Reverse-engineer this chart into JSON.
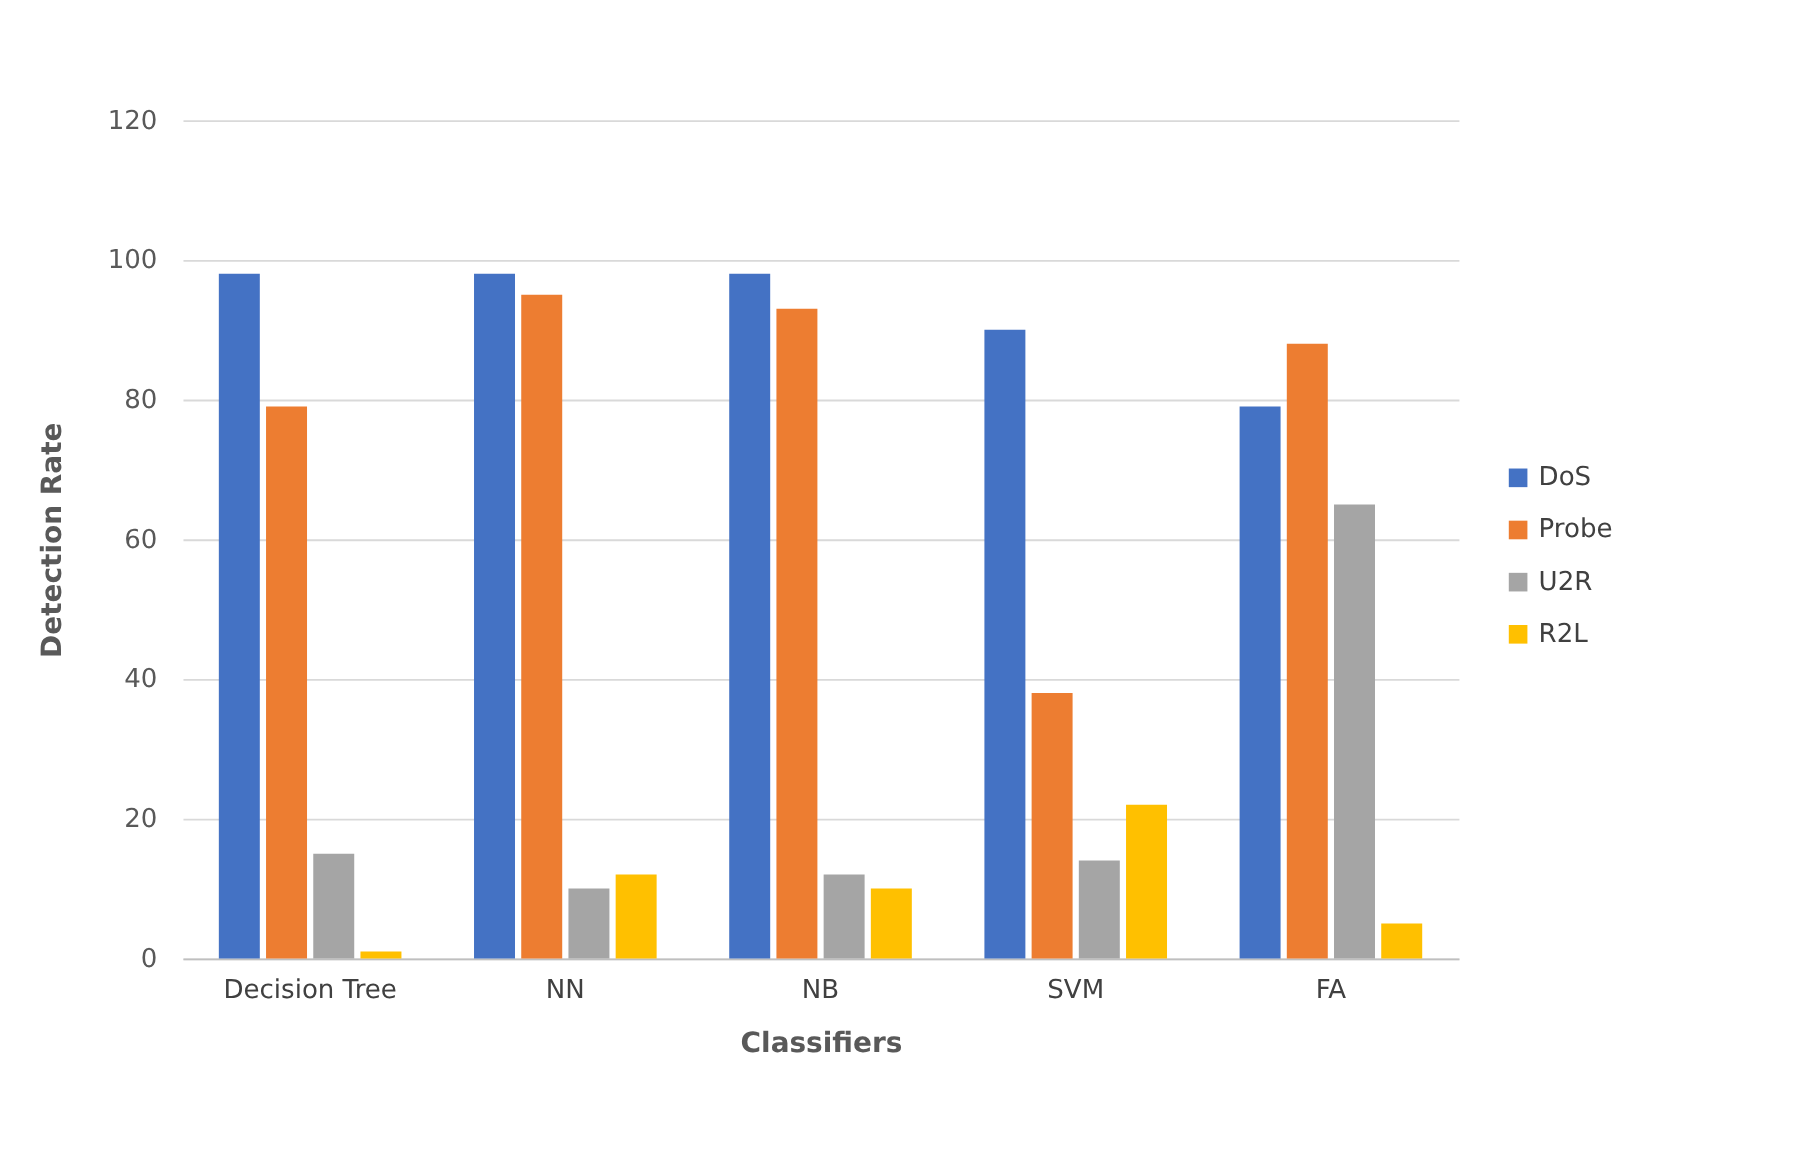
{
  "chart_data": {
    "type": "bar",
    "xlabel": "Classifiers",
    "ylabel": "Detection Rate",
    "categories": [
      "Decision Tree",
      "NN",
      "NB",
      "SVM",
      "FA"
    ],
    "series": [
      {
        "name": "DoS",
        "color": "#4472c4",
        "values": [
          98,
          98,
          98,
          90,
          79
        ]
      },
      {
        "name": "Probe",
        "color": "#ed7d31",
        "values": [
          79,
          95,
          93,
          38,
          88
        ]
      },
      {
        "name": "U2R",
        "color": "#a5a5a5",
        "values": [
          15,
          10,
          12,
          14,
          65
        ]
      },
      {
        "name": "R2L",
        "color": "#ffc000",
        "values": [
          1,
          12,
          10,
          22,
          5
        ]
      }
    ],
    "ylim": [
      0,
      120
    ],
    "yticks": [
      0,
      20,
      40,
      60,
      80,
      100,
      120
    ],
    "grid": "y",
    "legend": "right"
  }
}
